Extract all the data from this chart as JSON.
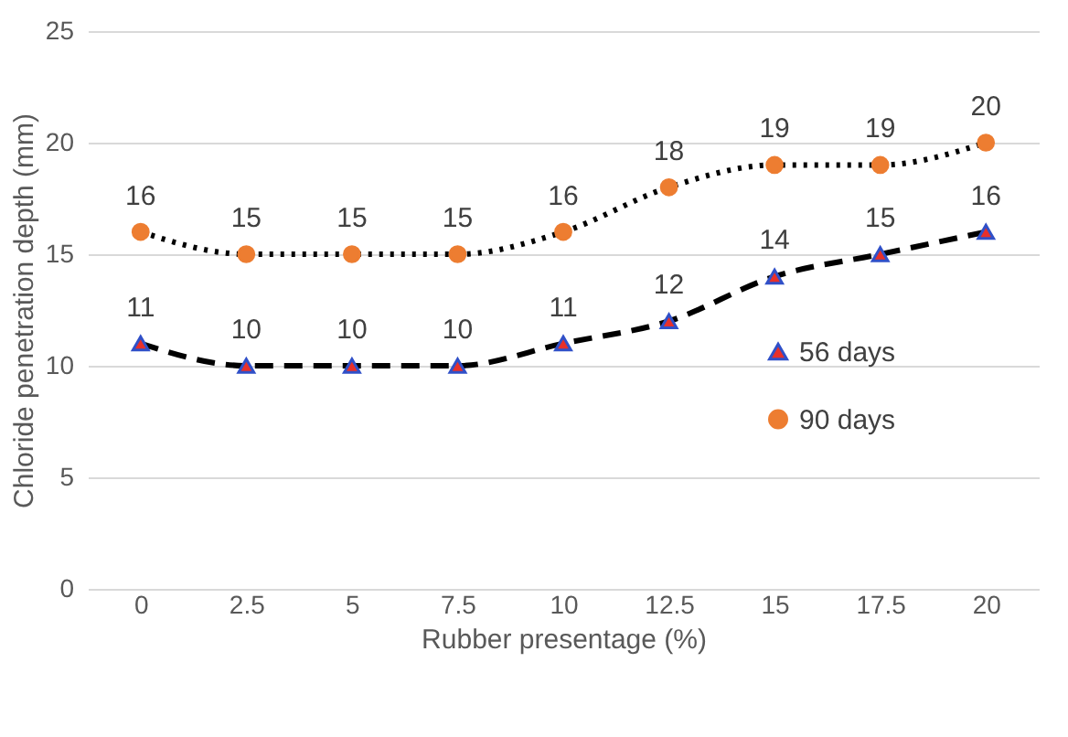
{
  "chart_data": {
    "type": "line",
    "xlabel": "Rubber presentage (%)",
    "ylabel": "Chloride penetration depth (mm)",
    "categories": [
      "0",
      "2.5",
      "5",
      "7.5",
      "10",
      "12.5",
      "15",
      "17.5",
      "20"
    ],
    "series": [
      {
        "name": "56 days",
        "color": "#e8302a",
        "marker": "triangle",
        "line_style": "dashed",
        "values": [
          11,
          10,
          10,
          10,
          11,
          12,
          14,
          15,
          16
        ]
      },
      {
        "name": "90 days",
        "color": "#ed7d31",
        "marker": "circle",
        "line_style": "dotted",
        "values": [
          16,
          15,
          15,
          15,
          16,
          18,
          19,
          19,
          20
        ]
      }
    ],
    "ylim": [
      0,
      25
    ],
    "yticks": [
      0,
      5,
      10,
      15,
      20,
      25
    ],
    "grid": "y",
    "legend": "right",
    "data_labels": true
  }
}
